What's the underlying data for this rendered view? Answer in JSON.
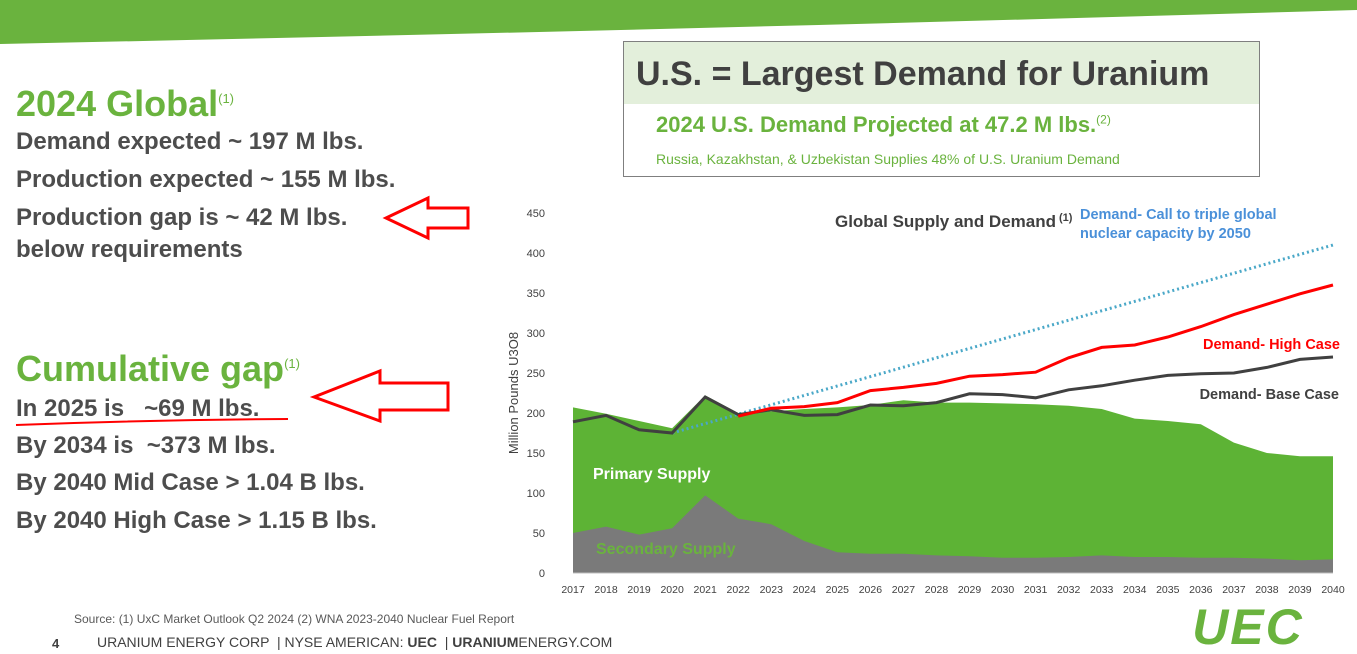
{
  "colors": {
    "brand_green": "#6ab33e",
    "chart_green": "#5db335",
    "secondary_gray": "#7a7a7a",
    "high_case_red": "#ff0000",
    "base_case_gray": "#404040",
    "triple_blue": "#4aa8c8",
    "arrow_red": "#ff0000"
  },
  "left": {
    "global_title": "2024 Global",
    "global_ref": "(1)",
    "global_lines": [
      "Demand expected ~ 197 M lbs.",
      "Production expected ~ 155 M lbs.",
      "Production gap is ~ 42 M lbs.",
      "below requirements"
    ],
    "cumulative_title": "Cumulative gap",
    "cumulative_ref": "(1)",
    "cumulative_lines": [
      "In 2025 is   ~69 M lbs.",
      "By 2034 is  ~373 M lbs.",
      "By 2040 Mid Case > 1.04 B lbs.",
      "By 2040 High Case > 1.15 B lbs."
    ]
  },
  "callout": {
    "title": "U.S. = Largest Demand for Uranium",
    "subtitle": "2024 U.S. Demand Projected at 47.2 M lbs.",
    "subtitle_ref": "(2)",
    "note": "Russia, Kazakhstan, & Uzbekistan Supplies 48% of U.S. Uranium Demand"
  },
  "chart_data": {
    "type": "area",
    "title": "Global Supply and Demand",
    "title_ref": "(1)",
    "ylabel": "Million Pounds U3O8",
    "ylim": [
      0,
      450
    ],
    "yticks": [
      0,
      50,
      100,
      150,
      200,
      250,
      300,
      350,
      400,
      450
    ],
    "x": [
      2017,
      2018,
      2019,
      2020,
      2021,
      2022,
      2023,
      2024,
      2025,
      2026,
      2027,
      2028,
      2029,
      2030,
      2031,
      2032,
      2033,
      2034,
      2035,
      2036,
      2037,
      2038,
      2039,
      2040
    ],
    "series": [
      {
        "name": "Secondary Supply",
        "kind": "area",
        "values": [
          50,
          58,
          48,
          56,
          97,
          68,
          61,
          40,
          26,
          24,
          24,
          22,
          21,
          19,
          19,
          20,
          22,
          20,
          20,
          19,
          19,
          18,
          16,
          17
        ]
      },
      {
        "name": "Primary Supply",
        "kind": "area-total",
        "values": [
          207,
          199,
          190,
          181,
          222,
          200,
          202,
          205,
          207,
          210,
          216,
          213,
          213,
          212,
          211,
          209,
          205,
          193,
          190,
          186,
          163,
          150,
          146,
          146
        ]
      },
      {
        "name": "Demand- Base Case",
        "kind": "line",
        "values": [
          189,
          197,
          179,
          175,
          220,
          198,
          204,
          197,
          198,
          210,
          209,
          213,
          224,
          223,
          219,
          229,
          234,
          241,
          247,
          249,
          250,
          257,
          267,
          270
        ]
      },
      {
        "name": "Demand- High Case",
        "kind": "line",
        "x": [
          2022,
          2023,
          2024,
          2025,
          2026,
          2027,
          2028,
          2029,
          2030,
          2031,
          2032,
          2033,
          2034,
          2035,
          2036,
          2037,
          2038,
          2039,
          2040
        ],
        "values": [
          196,
          206,
          208,
          213,
          228,
          232,
          237,
          246,
          248,
          251,
          269,
          282,
          285,
          295,
          308,
          323,
          336,
          349,
          360
        ]
      },
      {
        "name": "Demand- Call to triple global nuclear capacity by 2050",
        "kind": "dotted",
        "x": [
          2020,
          2040
        ],
        "values": [
          175,
          410
        ]
      }
    ],
    "labels": {
      "primary": "Primary Supply",
      "secondary": "Secondary Supply",
      "high": "Demand- High Case",
      "base": "Demand- Base Case",
      "triple_1": "Demand- Call to triple global",
      "triple_2": "nuclear capacity by 2050"
    }
  },
  "footer": {
    "source": "Source: (1) UxC Market Outlook Q2 2024 (2) WNA 2023-2040 Nuclear Fuel Report",
    "page": "4",
    "corp_1": "URANIUM ENERGY CORP  | NYSE AMERICAN: ",
    "corp_ticker": "UEC",
    "corp_2": "  | ",
    "corp_site_bold": "URANIUM",
    "corp_site_rest": "ENERGY.COM",
    "logo_text": "UEC"
  }
}
